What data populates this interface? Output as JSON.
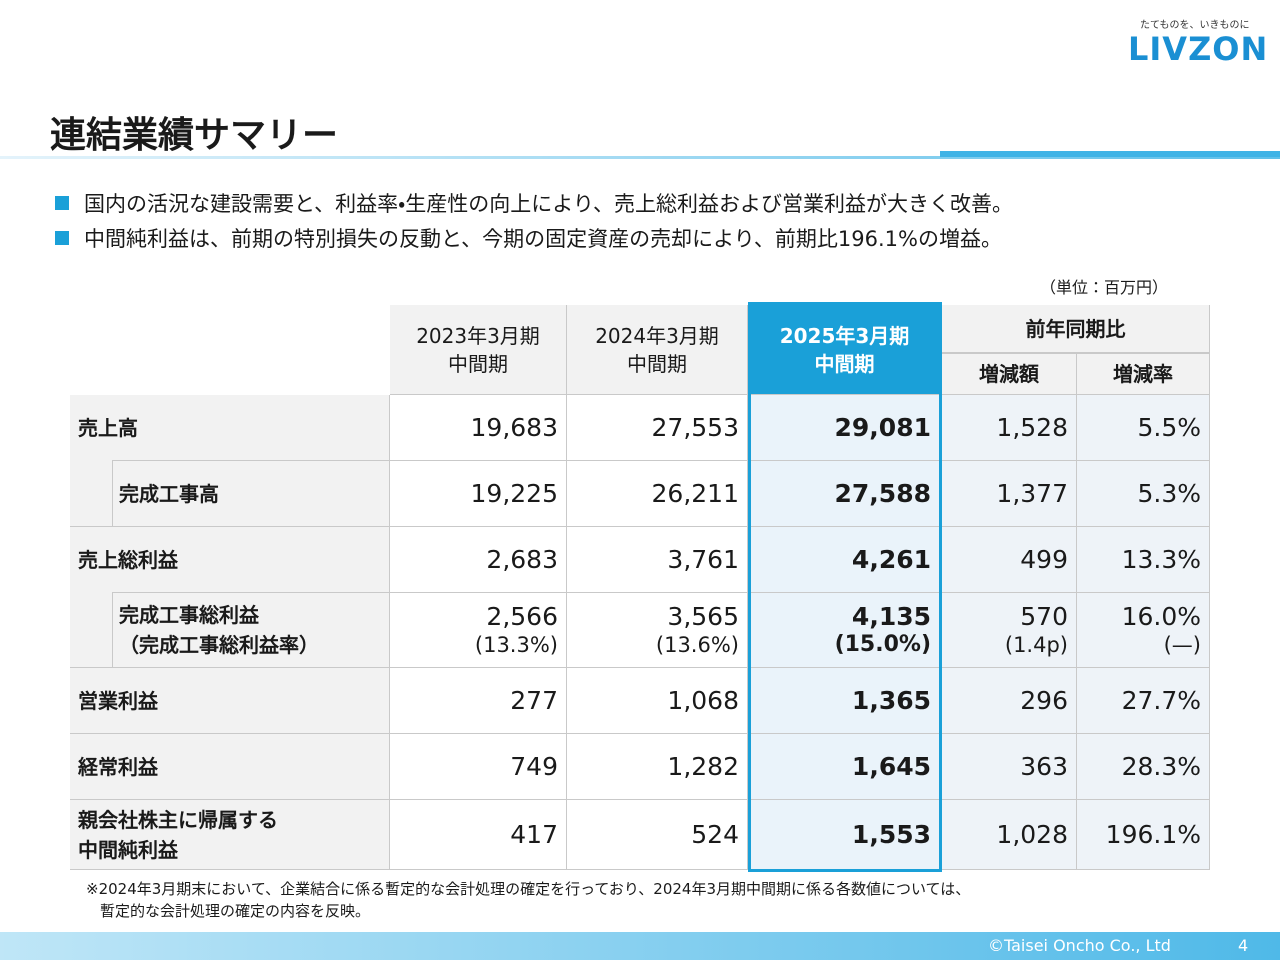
{
  "logo": {
    "tagline": "たてものを、いきものに",
    "name": "LIVZON"
  },
  "title": "連結業績サマリー",
  "bullets": [
    "国内の活況な建設需要と、利益率・生産性の向上により、売上総利益および営業利益が大きく改善。",
    "中間純利益は、前期の特別損失の反動と、今期の固定資産の売却により、前期比196.1%の増益。"
  ],
  "unit": "（単位：百万円）",
  "table": {
    "columns": [
      [
        "2023年3月期",
        "中間期"
      ],
      [
        "2024年3月期",
        "中間期"
      ],
      [
        "2025年3月期",
        "中間期"
      ]
    ],
    "yoy": "前年同期比",
    "yoy_columns": [
      "増減額",
      "増減率"
    ],
    "rows": [
      {
        "label": [
          "売上高"
        ],
        "cells": [
          [
            "19,683"
          ],
          [
            "27,553"
          ],
          [
            "29,081"
          ],
          [
            "1,528"
          ],
          [
            "5.5%"
          ]
        ]
      },
      {
        "label": [
          "完成工事高"
        ],
        "cells": [
          [
            "19,225"
          ],
          [
            "26,211"
          ],
          [
            "27,588"
          ],
          [
            "1,377"
          ],
          [
            "5.3%"
          ]
        ]
      },
      {
        "label": [
          "売上総利益"
        ],
        "cells": [
          [
            "2,683"
          ],
          [
            "3,761"
          ],
          [
            "4,261"
          ],
          [
            "499"
          ],
          [
            "13.3%"
          ]
        ]
      },
      {
        "label": [
          "完成工事総利益",
          "（完成工事総利益率）"
        ],
        "cells": [
          [
            "2,566",
            "(13.3%)"
          ],
          [
            "3,565",
            "(13.6%)"
          ],
          [
            "4,135",
            "(15.0%)"
          ],
          [
            "570",
            "(1.4p)"
          ],
          [
            "16.0%",
            "(—)"
          ]
        ]
      },
      {
        "label": [
          "営業利益"
        ],
        "cells": [
          [
            "277"
          ],
          [
            "1,068"
          ],
          [
            "1,365"
          ],
          [
            "296"
          ],
          [
            "27.7%"
          ]
        ]
      },
      {
        "label": [
          "経常利益"
        ],
        "cells": [
          [
            "749"
          ],
          [
            "1,282"
          ],
          [
            "1,645"
          ],
          [
            "363"
          ],
          [
            "28.3%"
          ]
        ]
      },
      {
        "label": [
          "親会社株主に帰属する",
          "中間純利益"
        ],
        "cells": [
          [
            "417"
          ],
          [
            "524"
          ],
          [
            "1,553"
          ],
          [
            "1,028"
          ],
          [
            "196.1%"
          ]
        ]
      }
    ]
  },
  "footnote": [
    "※2024年3月期末において、企業結合に係る暫定的な会計処理の確定を行っており、2024年3月期中間期に係る各数値については、",
    "暫定的な会計処理の確定の内容を反映。"
  ],
  "footer": {
    "copyright": "©Taisei Oncho Co., Ltd",
    "page": "4"
  }
}
